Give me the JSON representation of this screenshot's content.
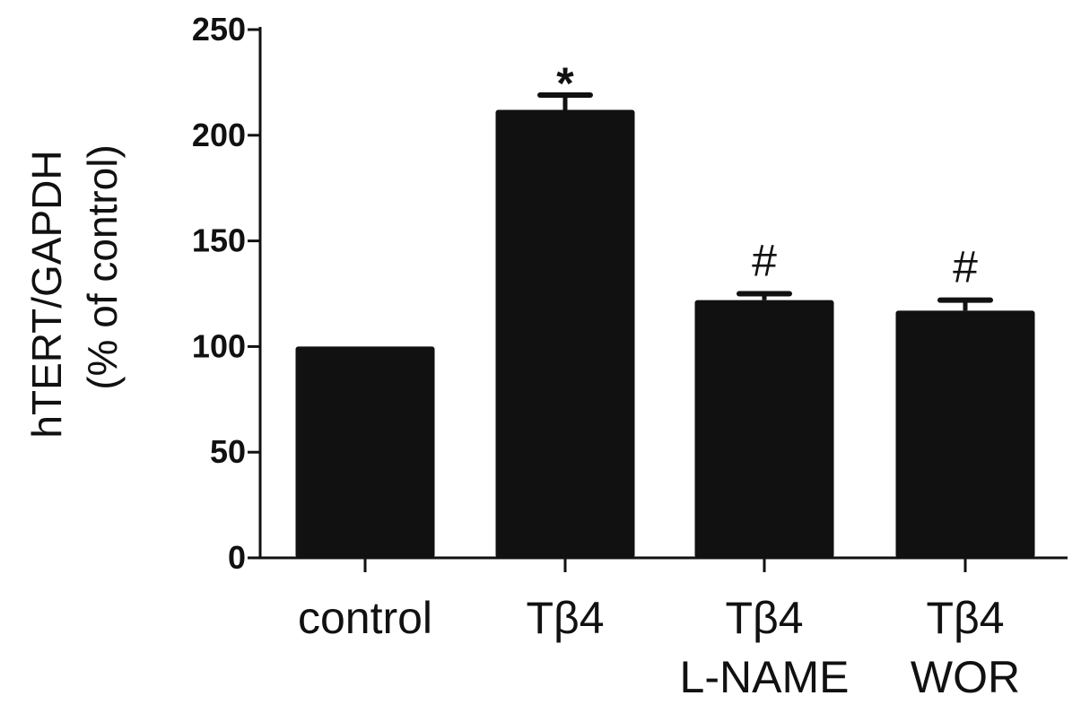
{
  "chart_data": {
    "type": "bar",
    "title": "",
    "ylabel_line1": "hTERT/GAPDH",
    "ylabel_line2": "(% of control)",
    "xlabel": "",
    "ylim": [
      0,
      250
    ],
    "yticks": [
      0,
      50,
      100,
      150,
      200,
      250
    ],
    "categories": [
      {
        "line1": "control",
        "line2": ""
      },
      {
        "line1": "Tβ4",
        "line2": ""
      },
      {
        "line1": "Tβ4",
        "line2": "L-NAME"
      },
      {
        "line1": "Tβ4",
        "line2": "WOR"
      }
    ],
    "values": [
      100,
      212,
      122,
      117
    ],
    "errors": [
      0,
      7,
      3,
      5
    ],
    "annotations": [
      "",
      "*",
      "#",
      "#"
    ],
    "bar_color": "#111111",
    "grid": false,
    "legend": "none"
  }
}
